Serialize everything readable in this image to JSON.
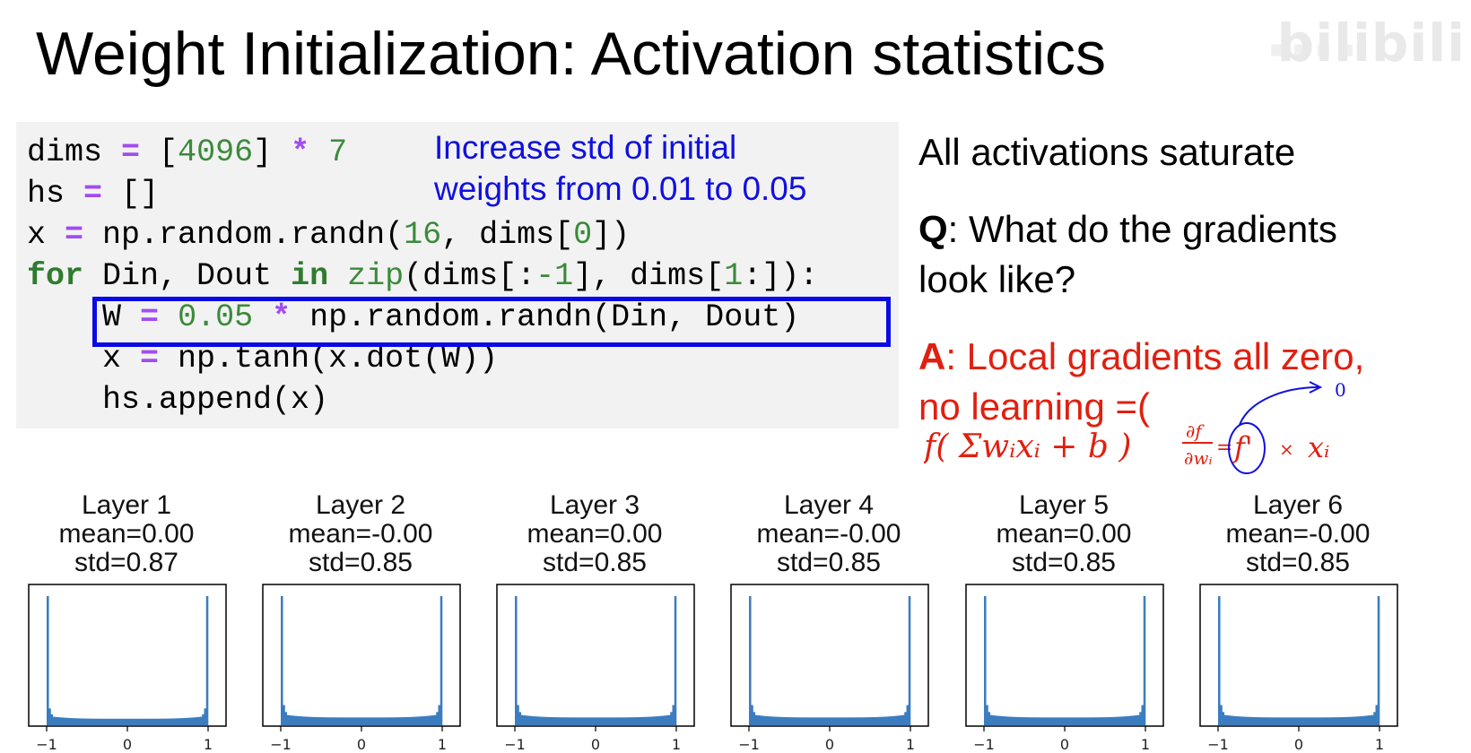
{
  "title": "Weight Initialization: Activation statistics",
  "watermark": "bilibili",
  "code": {
    "lines": [
      [
        {
          "t": "dims "
        },
        {
          "t": "=",
          "c": "op"
        },
        {
          "t": " ["
        },
        {
          "t": "4096",
          "c": "num"
        },
        {
          "t": "] "
        },
        {
          "t": "*",
          "c": "op"
        },
        {
          "t": " "
        },
        {
          "t": "7",
          "c": "num"
        }
      ],
      [
        {
          "t": "hs "
        },
        {
          "t": "=",
          "c": "op"
        },
        {
          "t": " []"
        }
      ],
      [
        {
          "t": "x "
        },
        {
          "t": "=",
          "c": "op"
        },
        {
          "t": " np.random.randn("
        },
        {
          "t": "16",
          "c": "num"
        },
        {
          "t": ", dims["
        },
        {
          "t": "0",
          "c": "num"
        },
        {
          "t": "])"
        }
      ],
      [
        {
          "t": "for",
          "c": "kw"
        },
        {
          "t": " Din, Dout "
        },
        {
          "t": "in",
          "c": "kw"
        },
        {
          "t": " "
        },
        {
          "t": "zip",
          "c": "fn"
        },
        {
          "t": "(dims[:"
        },
        {
          "t": "-1",
          "c": "num"
        },
        {
          "t": "], dims["
        },
        {
          "t": "1",
          "c": "num"
        },
        {
          "t": ":]):"
        }
      ],
      [
        {
          "t": "    W "
        },
        {
          "t": "=",
          "c": "op"
        },
        {
          "t": " "
        },
        {
          "t": "0.05",
          "c": "num"
        },
        {
          "t": " "
        },
        {
          "t": "*",
          "c": "op"
        },
        {
          "t": " np.random.randn(Din, Dout)"
        }
      ],
      [
        {
          "t": "    x "
        },
        {
          "t": "=",
          "c": "op"
        },
        {
          "t": " np.tanh(x.dot(W))"
        }
      ],
      [
        {
          "t": "    hs.append(x)"
        }
      ]
    ]
  },
  "annotation": {
    "line1": "Increase std of initial",
    "line2": "weights from 0.01 to 0.05"
  },
  "right": {
    "saturate": "All activations saturate",
    "q_label": "Q",
    "q_text": ": What do the gradients",
    "q_text2": "look like?",
    "a_label": "A",
    "a_text": ": Local gradients all zero,",
    "a_text2": "no learning =("
  },
  "handwriting": {
    "formula1": "f( Σwᵢxᵢ + b )",
    "frac_num": "∂f",
    "frac_den": "∂wᵢ",
    "fprime": "f'",
    "times": "×",
    "xi": "xᵢ",
    "zero": "0"
  },
  "colors": {
    "bar": "#3b7dbf",
    "blue": "#1010e0",
    "red": "#e02010",
    "op": "#a24cf0",
    "num": "#3a8a3a"
  },
  "chart_data": [
    {
      "type": "bar",
      "title": "Layer 1",
      "mean_label": "mean=0.00",
      "std_label": "std=0.87",
      "xticks": [
        "−1",
        "0",
        "1"
      ],
      "xlim": [
        -1,
        1
      ],
      "edge_height": 1.0,
      "center_height": 0.05
    },
    {
      "type": "bar",
      "title": "Layer 2",
      "mean_label": "mean=-0.00",
      "std_label": "std=0.85",
      "xticks": [
        "−1",
        "0",
        "1"
      ],
      "xlim": [
        -1,
        1
      ],
      "edge_height": 1.0,
      "center_height": 0.06
    },
    {
      "type": "bar",
      "title": "Layer 3",
      "mean_label": "mean=0.00",
      "std_label": "std=0.85",
      "xticks": [
        "−1",
        "0",
        "1"
      ],
      "xlim": [
        -1,
        1
      ],
      "edge_height": 1.0,
      "center_height": 0.06
    },
    {
      "type": "bar",
      "title": "Layer 4",
      "mean_label": "mean=-0.00",
      "std_label": "std=0.85",
      "xticks": [
        "−1",
        "0",
        "1"
      ],
      "xlim": [
        -1,
        1
      ],
      "edge_height": 1.0,
      "center_height": 0.06
    },
    {
      "type": "bar",
      "title": "Layer 5",
      "mean_label": "mean=0.00",
      "std_label": "std=0.85",
      "xticks": [
        "−1",
        "0",
        "1"
      ],
      "xlim": [
        -1,
        1
      ],
      "edge_height": 1.0,
      "center_height": 0.06
    },
    {
      "type": "bar",
      "title": "Layer 6",
      "mean_label": "mean=-0.00",
      "std_label": "std=0.85",
      "xticks": [
        "−1",
        "0",
        "1"
      ],
      "xlim": [
        -1,
        1
      ],
      "edge_height": 1.0,
      "center_height": 0.06
    }
  ]
}
